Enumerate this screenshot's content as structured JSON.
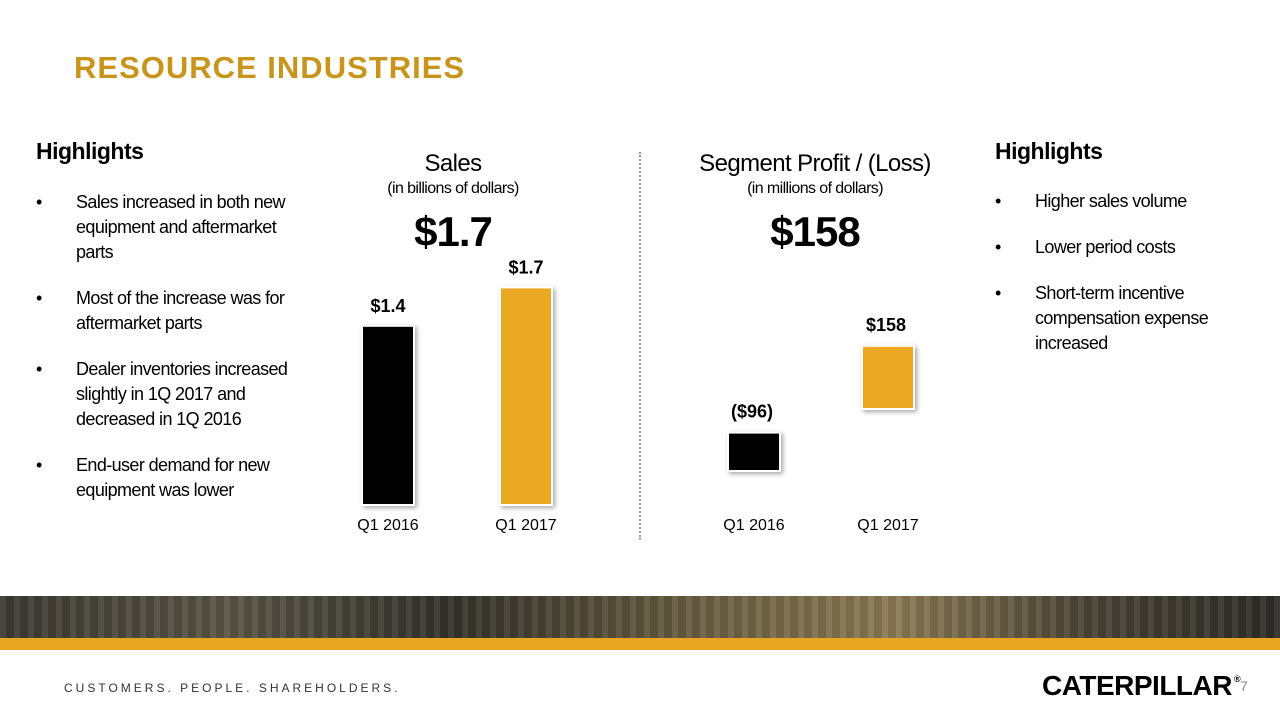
{
  "title": "RESOURCE INDUSTRIES",
  "left_highlights": {
    "heading": "Highlights",
    "items": [
      "Sales increased in both new equipment and aftermarket parts",
      "Most of the increase was for aftermarket parts",
      "Dealer inventories increased slightly in 1Q 2017 and decreased in 1Q 2016",
      "End-user demand for new equipment was lower"
    ]
  },
  "right_highlights": {
    "heading": "Highlights",
    "items": [
      "Higher sales volume",
      "Lower period costs",
      "Short-term incentive compensation expense increased"
    ]
  },
  "chart_data": [
    {
      "type": "bar",
      "title": "Sales",
      "subtitle": "(in billions of dollars)",
      "headline": "$1.7",
      "categories": [
        "Q1 2016",
        "Q1 2017"
      ],
      "values": [
        1.4,
        1.7
      ],
      "data_labels": [
        "$1.4",
        "$1.7"
      ],
      "colors": [
        "#000000",
        "#eba824"
      ]
    },
    {
      "type": "bar",
      "title": "Segment Profit / (Loss)",
      "subtitle": "(in millions of dollars)",
      "headline": "$158",
      "categories": [
        "Q1 2016",
        "Q1 2017"
      ],
      "values": [
        -96,
        158
      ],
      "data_labels": [
        "($96)",
        "$158"
      ],
      "colors": [
        "#000000",
        "#eba824"
      ]
    }
  ],
  "footer": {
    "tagline": "CUSTOMERS. PEOPLE. SHAREHOLDERS.",
    "logo": "CATERPILLAR",
    "logo_mark": "®",
    "page_number": "7"
  }
}
